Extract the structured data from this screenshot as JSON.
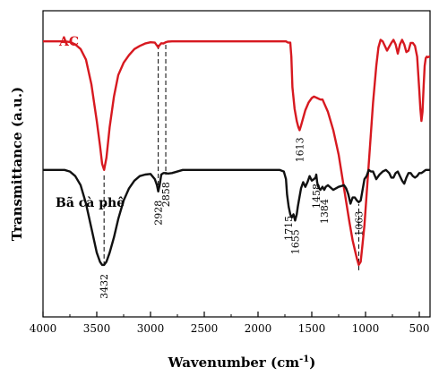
{
  "chart_data": {
    "type": "line",
    "title": "",
    "xlabel": "Wavenumber (cm",
    "xlabel_sup": "-1",
    "xlabel_close": ")",
    "ylabel": "Transmittance (a.u.)",
    "xlim": [
      4000,
      400
    ],
    "x_reversed": true,
    "x_ticks": [
      4000,
      3500,
      3000,
      2500,
      2000,
      1500,
      1000,
      500
    ],
    "x_tick_labels": [
      "4000",
      "3500",
      "3000",
      "2500",
      "2000",
      "1500",
      "1000",
      "500"
    ],
    "ylim": [
      0,
      100
    ],
    "y_ticks_labeled": false,
    "grid": false,
    "series": [
      {
        "name": "AC",
        "color": "#d71920",
        "x": [
          4000,
          3800,
          3750,
          3700,
          3650,
          3600,
          3550,
          3500,
          3470,
          3450,
          3432,
          3410,
          3380,
          3340,
          3300,
          3250,
          3200,
          3150,
          3100,
          3050,
          3000,
          2960,
          2935,
          2928,
          2920,
          2900,
          2880,
          2858,
          2840,
          2800,
          2700,
          2500,
          2300,
          2000,
          1800,
          1740,
          1720,
          1700,
          1690,
          1680,
          1660,
          1640,
          1625,
          1613,
          1600,
          1580,
          1560,
          1530,
          1500,
          1480,
          1450,
          1420,
          1400,
          1350,
          1300,
          1250,
          1200,
          1150,
          1120,
          1100,
          1080,
          1063,
          1045,
          1030,
          1010,
          990,
          960,
          930,
          900,
          880,
          860,
          840,
          800,
          760,
          740,
          720,
          700,
          680,
          660,
          640,
          620,
          600,
          580,
          560,
          540,
          520,
          500,
          490,
          480,
          470,
          460,
          450,
          440,
          430,
          420,
          410,
          400
        ],
        "y": [
          90,
          90,
          89.8,
          89,
          87.5,
          84,
          76,
          64,
          56,
          50,
          48,
          52,
          62,
          72,
          79,
          83,
          85.5,
          87.5,
          88.5,
          89.3,
          89.7,
          89.6,
          88.4,
          88,
          88.6,
          89.4,
          89.3,
          89.7,
          89.9,
          90,
          90,
          90,
          90,
          90,
          90,
          90,
          89.6,
          89.6,
          85,
          75,
          68,
          64,
          62,
          61,
          62.5,
          65,
          67.5,
          70,
          71.5,
          72,
          71.5,
          71,
          71,
          67,
          61,
          53,
          42,
          31,
          25,
          22,
          19,
          17,
          18,
          23,
          30,
          40,
          55,
          70,
          82,
          88,
          90.5,
          90,
          87,
          89.5,
          90.5,
          89,
          86,
          89,
          90.5,
          89,
          86.5,
          87,
          89.5,
          89.5,
          88.5,
          85,
          74,
          68,
          64,
          67,
          75,
          82,
          84.5,
          85,
          84.8,
          85,
          85
        ]
      },
      {
        "name": "Bã cà phê",
        "color": "#111111",
        "x": [
          4000,
          3800,
          3750,
          3700,
          3650,
          3600,
          3550,
          3500,
          3470,
          3450,
          3432,
          3410,
          3380,
          3340,
          3300,
          3250,
          3200,
          3150,
          3100,
          3050,
          3000,
          2960,
          2940,
          2928,
          2915,
          2900,
          2880,
          2858,
          2840,
          2800,
          2700,
          2500,
          2300,
          2000,
          1800,
          1760,
          1740,
          1730,
          1715,
          1700,
          1685,
          1670,
          1655,
          1640,
          1630,
          1620,
          1600,
          1580,
          1560,
          1540,
          1520,
          1500,
          1480,
          1465,
          1458,
          1450,
          1440,
          1420,
          1400,
          1384,
          1370,
          1350,
          1300,
          1250,
          1200,
          1180,
          1160,
          1140,
          1120,
          1100,
          1080,
          1063,
          1045,
          1030,
          1010,
          990,
          970,
          950,
          930,
          900,
          870,
          840,
          810,
          780,
          760,
          740,
          720,
          700,
          680,
          660,
          640,
          620,
          600,
          580,
          560,
          540,
          520,
          500,
          480,
          460,
          440,
          420,
          400
        ],
        "y": [
          48,
          48,
          47.5,
          46,
          43,
          37,
          29,
          21,
          18,
          17,
          17,
          18,
          21,
          26,
          32,
          38,
          42,
          44.5,
          46,
          46.5,
          46.7,
          45,
          43,
          41,
          43,
          46.5,
          47,
          47,
          46.8,
          47,
          48,
          48,
          48,
          48,
          48,
          47.5,
          45,
          40,
          36,
          33.5,
          32.5,
          33.5,
          31.5,
          33.5,
          36,
          38,
          42,
          44,
          42.5,
          44,
          46,
          44.5,
          45,
          45.5,
          46.5,
          44,
          42.5,
          41.5,
          42.5,
          41.5,
          42.5,
          43,
          41.5,
          42.5,
          43,
          42,
          40,
          37,
          39,
          39,
          38,
          37.5,
          38,
          41,
          45,
          46,
          48,
          47.5,
          47.5,
          45,
          46.5,
          47.5,
          48,
          47,
          45.5,
          45.5,
          47,
          47.5,
          46,
          44.5,
          43.5,
          45.5,
          47,
          47,
          46,
          45.5,
          46,
          47,
          47,
          47.5,
          48,
          48,
          48
        ]
      }
    ],
    "peak_labels": [
      {
        "label": "3432",
        "x": 3432
      },
      {
        "label": "2928",
        "x": 2928
      },
      {
        "label": "2858",
        "x": 2858
      },
      {
        "label": "1613",
        "x": 1613
      },
      {
        "label": "1715",
        "x": 1715
      },
      {
        "label": "1655",
        "x": 1655
      },
      {
        "label": "1458",
        "x": 1458
      },
      {
        "label": "1384",
        "x": 1384
      },
      {
        "label": "1063",
        "x": 1063
      }
    ],
    "guide_lines": [
      3432,
      2928,
      2858,
      1063
    ]
  }
}
